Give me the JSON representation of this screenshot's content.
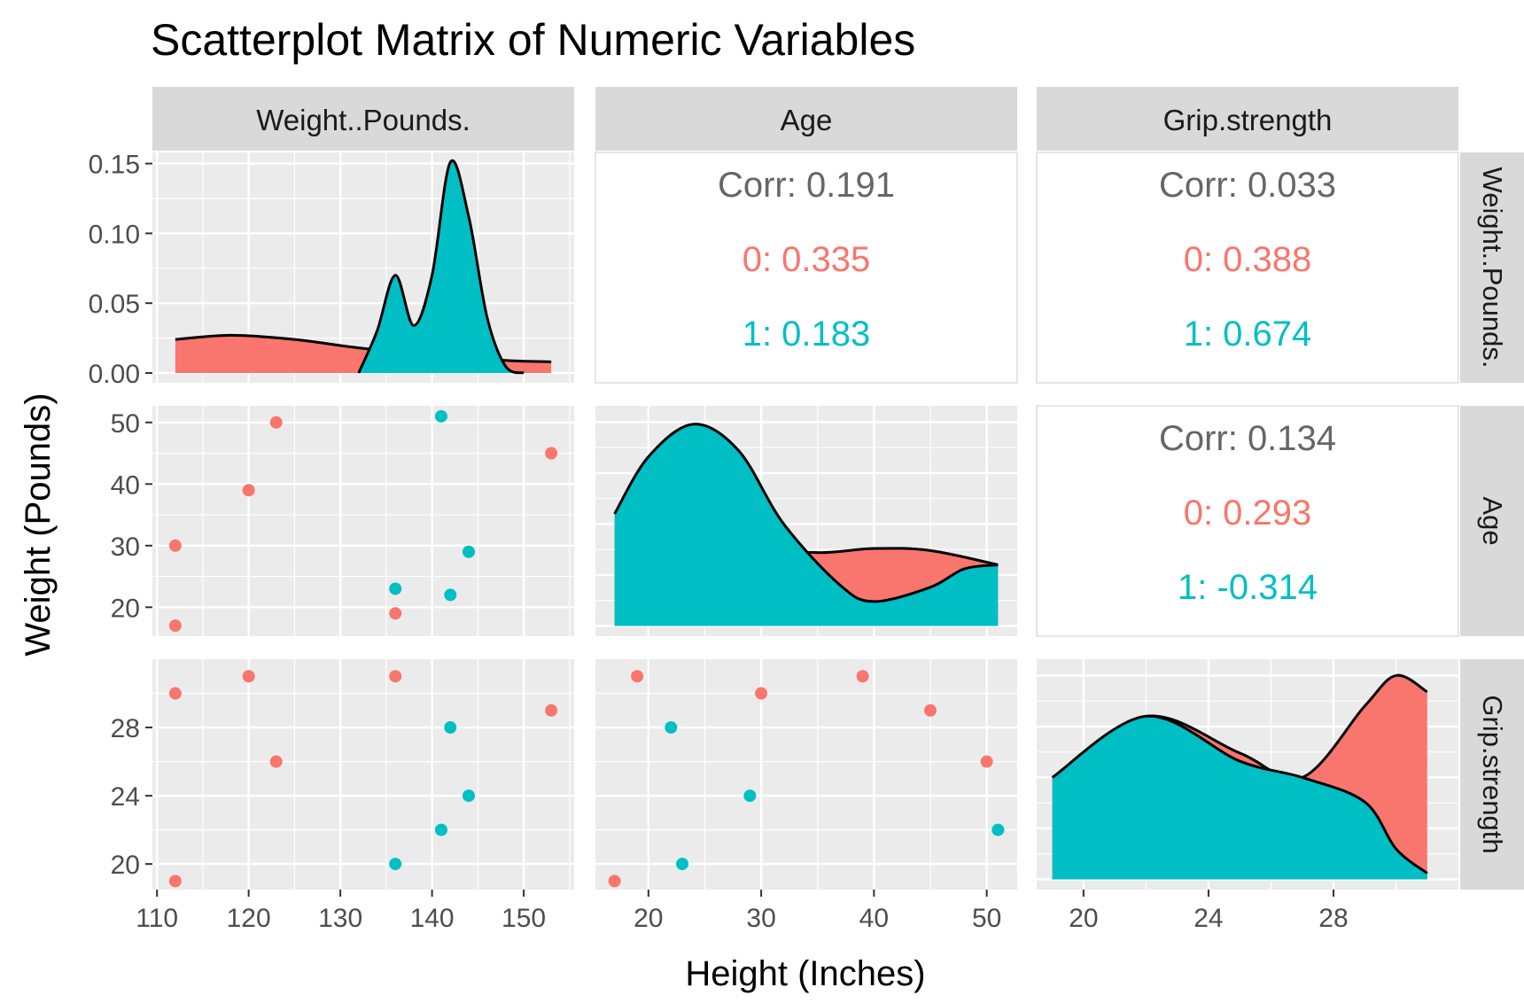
{
  "chart_data": {
    "type": "scatter",
    "subtype": "scatterplot-matrix",
    "title": "Scatterplot Matrix of Numeric Variables",
    "xlabel": "Height (Inches)",
    "ylabel": "Weight (Pounds)",
    "variables": [
      "Weight..Pounds.",
      "Age",
      "Grip.strength"
    ],
    "colors": {
      "group_0": "#F8766D",
      "group_1": "#00BFC4",
      "corr_overall": "#666666",
      "strip_bg": "#D9D9D9",
      "panel_bg": "#EBEBEB"
    },
    "axes": {
      "Weight..Pounds.": {
        "range": [
          109.5,
          155.5
        ],
        "ticks": [
          110,
          120,
          130,
          140,
          150
        ]
      },
      "Age": {
        "range": [
          15.3,
          52.7
        ],
        "ticks": [
          20,
          30,
          40,
          50
        ]
      },
      "Grip.strength": {
        "range": [
          18.5,
          32.0
        ],
        "ticks": [
          20,
          24,
          28
        ]
      }
    },
    "density_y_ticks": [
      0.0,
      0.05,
      0.1,
      0.15
    ],
    "density_y_tick_labels": [
      "0.00",
      "0.05",
      "0.10",
      "0.15"
    ],
    "density_y_range": [
      -0.007,
      0.158
    ],
    "points": [
      {
        "group": "0",
        "Weight..Pounds.": 112,
        "Age": 17,
        "Grip.strength": 19
      },
      {
        "group": "0",
        "Weight..Pounds.": 112,
        "Age": 30,
        "Grip.strength": 30
      },
      {
        "group": "0",
        "Weight..Pounds.": 120,
        "Age": 39,
        "Grip.strength": 31
      },
      {
        "group": "0",
        "Weight..Pounds.": 123,
        "Age": 50,
        "Grip.strength": 26
      },
      {
        "group": "0",
        "Weight..Pounds.": 136,
        "Age": 19,
        "Grip.strength": 31
      },
      {
        "group": "0",
        "Weight..Pounds.": 153,
        "Age": 45,
        "Grip.strength": 29
      },
      {
        "group": "1",
        "Weight..Pounds.": 136,
        "Age": 23,
        "Grip.strength": 20
      },
      {
        "group": "1",
        "Weight..Pounds.": 141,
        "Age": 51,
        "Grip.strength": 22
      },
      {
        "group": "1",
        "Weight..Pounds.": 142,
        "Age": 22,
        "Grip.strength": 28
      },
      {
        "group": "1",
        "Weight..Pounds.": 144,
        "Age": 29,
        "Grip.strength": 24
      }
    ],
    "densities": {
      "Weight..Pounds.": {
        "group_0": [
          [
            112,
            0.024
          ],
          [
            118,
            0.027
          ],
          [
            125,
            0.024
          ],
          [
            132,
            0.018
          ],
          [
            140,
            0.013
          ],
          [
            148,
            0.009
          ],
          [
            153,
            0.008
          ]
        ],
        "group_1": [
          [
            132,
            0.0
          ],
          [
            134,
            0.03
          ],
          [
            136,
            0.07
          ],
          [
            138,
            0.034
          ],
          [
            140,
            0.07
          ],
          [
            142,
            0.151
          ],
          [
            144,
            0.112
          ],
          [
            146,
            0.04
          ],
          [
            148,
            0.005
          ],
          [
            150,
            0.0
          ]
        ]
      },
      "Age": {
        "group_0": [
          [
            17,
            0.55
          ],
          [
            21,
            0.75
          ],
          [
            25,
            0.68
          ],
          [
            30,
            0.4
          ],
          [
            35,
            0.36
          ],
          [
            40,
            0.38
          ],
          [
            45,
            0.37
          ],
          [
            51,
            0.3
          ]
        ],
        "group_1": [
          [
            17,
            0.55
          ],
          [
            20,
            0.83
          ],
          [
            24,
            0.99
          ],
          [
            28,
            0.86
          ],
          [
            32,
            0.5
          ],
          [
            37,
            0.2
          ],
          [
            40,
            0.12
          ],
          [
            45,
            0.19
          ],
          [
            48,
            0.28
          ],
          [
            51,
            0.3
          ]
        ]
      },
      "Grip.strength": {
        "group_0": [
          [
            19,
            0.5
          ],
          [
            22,
            0.8
          ],
          [
            25,
            0.62
          ],
          [
            27,
            0.5
          ],
          [
            29,
            0.85
          ],
          [
            30,
            1.0
          ],
          [
            31,
            0.92
          ]
        ],
        "group_1": [
          [
            19,
            0.5
          ],
          [
            22,
            0.8
          ],
          [
            25,
            0.58
          ],
          [
            27,
            0.5
          ],
          [
            29,
            0.38
          ],
          [
            30,
            0.15
          ],
          [
            31,
            0.03
          ]
        ]
      }
    },
    "correlations": [
      {
        "row": "Weight..Pounds.",
        "col": "Age",
        "overall": "Corr: 0.191",
        "group_0": "0: 0.335",
        "group_1": "1: 0.183"
      },
      {
        "row": "Weight..Pounds.",
        "col": "Grip.strength",
        "overall": "Corr: 0.033",
        "group_0": "0: 0.388",
        "group_1": "1: 0.674"
      },
      {
        "row": "Age",
        "col": "Grip.strength",
        "overall": "Corr: 0.134",
        "group_0": "0: 0.293",
        "group_1": "1: -0.314"
      }
    ]
  }
}
